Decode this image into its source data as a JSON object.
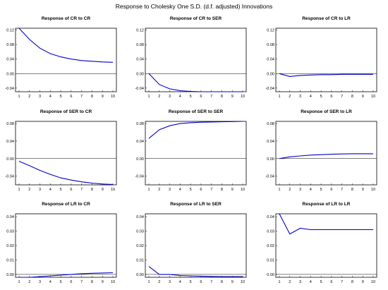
{
  "title": "Response to Cholesky One S.D. (d.f. adjusted) Innovations",
  "chart_data": [
    {
      "type": "line",
      "title": "Response of CR to CR",
      "x": [
        1,
        2,
        3,
        4,
        5,
        6,
        7,
        8,
        9,
        10
      ],
      "values": [
        0.125,
        0.094,
        0.07,
        0.055,
        0.046,
        0.04,
        0.036,
        0.034,
        0.032,
        0.031
      ],
      "ylim": [
        -0.05,
        0.125
      ],
      "yticks": [
        -0.04,
        0.0,
        0.04,
        0.08,
        0.12
      ],
      "ytick_labels": [
        "-0.04",
        "0.00",
        "0.04",
        "0.08",
        "0.12"
      ]
    },
    {
      "type": "line",
      "title": "Response of CR to SER",
      "x": [
        1,
        2,
        3,
        4,
        5,
        6,
        7,
        8,
        9,
        10
      ],
      "values": [
        0.0,
        -0.03,
        -0.042,
        -0.047,
        -0.049,
        -0.05,
        -0.05,
        -0.05,
        -0.05,
        -0.05
      ],
      "ylim": [
        -0.05,
        0.125
      ],
      "yticks": [
        -0.04,
        0.0,
        0.04,
        0.08,
        0.12
      ],
      "ytick_labels": [
        "-0.04",
        "0.00",
        "0.04",
        "0.08",
        "0.12"
      ]
    },
    {
      "type": "line",
      "title": "Response of CR to LR",
      "x": [
        1,
        2,
        3,
        4,
        5,
        6,
        7,
        8,
        9,
        10
      ],
      "values": [
        0.0,
        -0.008,
        -0.005,
        -0.004,
        -0.003,
        -0.003,
        -0.002,
        -0.002,
        -0.002,
        -0.002
      ],
      "ylim": [
        -0.05,
        0.125
      ],
      "yticks": [
        -0.04,
        0.0,
        0.04,
        0.08,
        0.12
      ],
      "ytick_labels": [
        "-0.04",
        "0.00",
        "0.04",
        "0.08",
        "0.12"
      ]
    },
    {
      "type": "line",
      "title": "Response of SER to CR",
      "x": [
        1,
        2,
        3,
        4,
        5,
        6,
        7,
        8,
        9,
        10
      ],
      "values": [
        -0.006,
        -0.016,
        -0.027,
        -0.036,
        -0.044,
        -0.049,
        -0.053,
        -0.056,
        -0.058,
        -0.059
      ],
      "ylim": [
        -0.06,
        0.085
      ],
      "yticks": [
        -0.04,
        0.0,
        0.04,
        0.08
      ],
      "ytick_labels": [
        "-0.04",
        "0.00",
        "0.04",
        "0.08"
      ]
    },
    {
      "type": "line",
      "title": "Response of SER to SER",
      "x": [
        1,
        2,
        3,
        4,
        5,
        6,
        7,
        8,
        9,
        10
      ],
      "values": [
        0.046,
        0.066,
        0.075,
        0.08,
        0.082,
        0.083,
        0.0835,
        0.084,
        0.0845,
        0.085
      ],
      "ylim": [
        -0.06,
        0.085
      ],
      "yticks": [
        -0.04,
        0.0,
        0.04,
        0.08
      ],
      "ytick_labels": [
        "-0.04",
        "0.00",
        "0.04",
        "0.08"
      ]
    },
    {
      "type": "line",
      "title": "Response of SER to LR",
      "x": [
        1,
        2,
        3,
        4,
        5,
        6,
        7,
        8,
        9,
        10
      ],
      "values": [
        0.0,
        0.004,
        0.006,
        0.008,
        0.009,
        0.01,
        0.0105,
        0.011,
        0.011,
        0.011
      ],
      "ylim": [
        -0.06,
        0.085
      ],
      "yticks": [
        -0.04,
        0.0,
        0.04,
        0.08
      ],
      "ytick_labels": [
        "-0.04",
        "0.00",
        "0.04",
        "0.08"
      ]
    },
    {
      "type": "line",
      "title": "Response of LR to CR",
      "x": [
        1,
        2,
        3,
        4,
        5,
        6,
        7,
        8,
        9,
        10
      ],
      "values": [
        -0.002,
        -0.002,
        -0.0015,
        -0.001,
        -0.0005,
        0.0,
        0.0005,
        0.0008,
        0.001,
        0.0012
      ],
      "ylim": [
        -0.002,
        0.042
      ],
      "yticks": [
        0.0,
        0.01,
        0.02,
        0.03,
        0.04
      ],
      "ytick_labels": [
        "0.00",
        "0.01",
        "0.02",
        "0.03",
        "0.04"
      ]
    },
    {
      "type": "line",
      "title": "Response of LR to SER",
      "x": [
        1,
        2,
        3,
        4,
        5,
        6,
        7,
        8,
        9,
        10
      ],
      "values": [
        0.0055,
        0.0,
        0.0,
        -0.0008,
        -0.001,
        -0.0012,
        -0.0014,
        -0.0015,
        -0.0015,
        -0.0015
      ],
      "ylim": [
        -0.002,
        0.042
      ],
      "yticks": [
        0.0,
        0.01,
        0.02,
        0.03,
        0.04
      ],
      "ytick_labels": [
        "0.00",
        "0.01",
        "0.02",
        "0.03",
        "0.04"
      ]
    },
    {
      "type": "line",
      "title": "Response of LR to LR",
      "x": [
        1,
        2,
        3,
        4,
        5,
        6,
        7,
        8,
        9,
        10
      ],
      "values": [
        0.042,
        0.028,
        0.032,
        0.031,
        0.031,
        0.031,
        0.031,
        0.031,
        0.031,
        0.031
      ],
      "ylim": [
        -0.002,
        0.042
      ],
      "yticks": [
        0.0,
        0.01,
        0.02,
        0.03,
        0.04
      ],
      "ytick_labels": [
        "0.00",
        "0.01",
        "0.02",
        "0.03",
        "0.04"
      ]
    }
  ]
}
